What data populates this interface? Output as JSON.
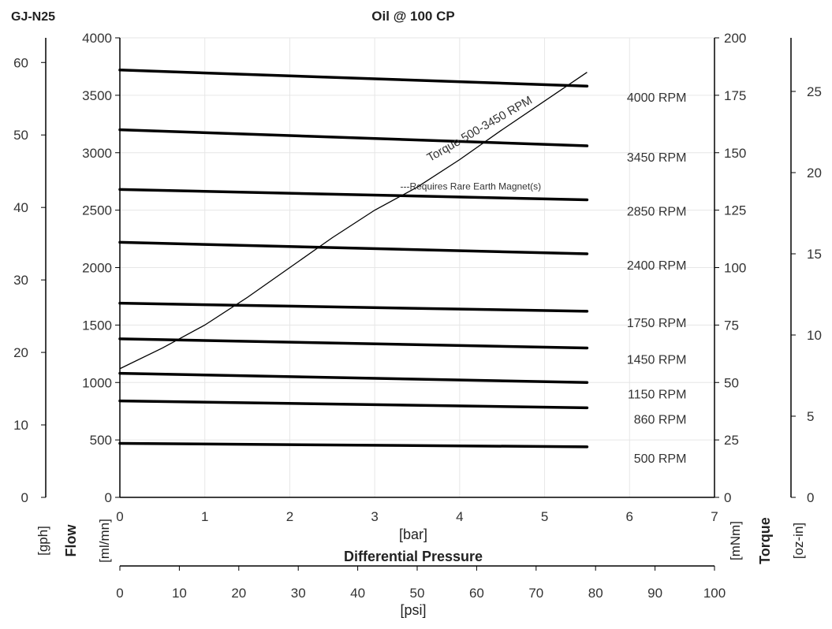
{
  "header": {
    "model": "GJ-N25",
    "title": "Oil @ 100 CP"
  },
  "labels": {
    "flow": "Flow",
    "gph": "[gph]",
    "mlmn": "[ml/mn]",
    "bar": "[bar]",
    "differential_pressure": "Differential Pressure",
    "psi": "[psi]",
    "mnm": "[mNm]",
    "torque": "Torque",
    "ozin": "[oz-in]"
  },
  "colors": {
    "line": "#000000",
    "grid": "#e6e6e6",
    "text": "#333333",
    "background": "#ffffff"
  },
  "chart_data": {
    "type": "line",
    "title": "Oil @ 100 CP",
    "xlabel": "Differential Pressure",
    "grid": true,
    "axes": {
      "bar": {
        "label": "[bar]",
        "range": [
          0,
          7
        ],
        "ticks": [
          0,
          1,
          2,
          3,
          4,
          5,
          6,
          7
        ]
      },
      "psi": {
        "label": "[psi]",
        "range": [
          0,
          100
        ],
        "ticks": [
          0,
          10,
          20,
          30,
          40,
          50,
          60,
          70,
          80,
          90,
          100
        ]
      },
      "ml_mn": {
        "label": "[ml/mn]",
        "range": [
          0,
          4000
        ],
        "ticks": [
          0,
          500,
          1000,
          1500,
          2000,
          2500,
          3000,
          3500,
          4000
        ]
      },
      "gph": {
        "label": "[gph]",
        "range": [
          0,
          63.4
        ],
        "ticks": [
          0,
          10,
          20,
          30,
          40,
          50,
          60
        ]
      },
      "mNm": {
        "label": "[mNm]",
        "range": [
          0,
          200
        ],
        "ticks": [
          0,
          25,
          50,
          75,
          100,
          125,
          150,
          175,
          200
        ]
      },
      "oz_in": {
        "label": "[oz-in]",
        "range": [
          0,
          28.3
        ],
        "ticks": [
          0,
          5,
          10,
          15,
          20,
          25
        ]
      }
    },
    "series": [
      {
        "name": "4000 RPM",
        "x": [
          0,
          5.5
        ],
        "y": [
          3720,
          3580
        ]
      },
      {
        "name": "3450 RPM",
        "x": [
          0,
          5.5
        ],
        "y": [
          3200,
          3060
        ]
      },
      {
        "name": "2850 RPM",
        "x": [
          0,
          5.5
        ],
        "y": [
          2680,
          2590
        ]
      },
      {
        "name": "2400 RPM",
        "x": [
          0,
          5.5
        ],
        "y": [
          2220,
          2120
        ]
      },
      {
        "name": "1750 RPM",
        "x": [
          0,
          5.5
        ],
        "y": [
          1690,
          1620
        ]
      },
      {
        "name": "1450 RPM",
        "x": [
          0,
          5.5
        ],
        "y": [
          1380,
          1300
        ]
      },
      {
        "name": "1150 RPM",
        "x": [
          0,
          5.5
        ],
        "y": [
          1080,
          1000
        ]
      },
      {
        "name": "860 RPM",
        "x": [
          0,
          5.5
        ],
        "y": [
          840,
          780
        ]
      },
      {
        "name": "500 RPM",
        "x": [
          0,
          5.5
        ],
        "y": [
          470,
          440
        ]
      }
    ],
    "torque_line": {
      "label": "Torque 500-3450 RPM",
      "units": "mNm",
      "x": [
        0,
        0.5,
        1,
        1.5,
        2,
        2.5,
        3,
        3.5,
        4,
        4.5,
        5.5
      ],
      "y": [
        56,
        65,
        75,
        87,
        100,
        113,
        125,
        135,
        147,
        160,
        185
      ]
    },
    "annotations": [
      {
        "text": "---Requires Rare Earth Magnet(s)",
        "x": 3.3,
        "y_mNm": 134
      }
    ]
  }
}
